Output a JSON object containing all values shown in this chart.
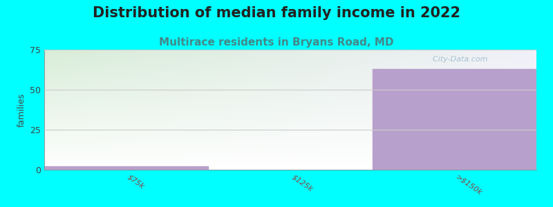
{
  "title": "Distribution of median family income in 2022",
  "subtitle": "Multirace residents in Bryans Road, MD",
  "categories": [
    "$75k",
    "$125k",
    ">$150k"
  ],
  "values": [
    2,
    0,
    63
  ],
  "bar_color": "#B8A0CC",
  "background_color": "#00FFFF",
  "plot_bg_gradient_topleft": "#d8edd8",
  "plot_bg_gradient_topright": "#f0f0f8",
  "plot_bg_gradient_bottom": "#ffffff",
  "ylabel": "families",
  "ylim": [
    0,
    75
  ],
  "yticks": [
    0,
    25,
    50,
    75
  ],
  "title_fontsize": 15,
  "subtitle_fontsize": 11,
  "title_color": "#222222",
  "subtitle_color": "#448888",
  "watermark": "  City-Data.com",
  "watermark_color": "#99BBCC",
  "tick_label_color": "#884444",
  "tick_label_fontsize": 8,
  "ylabel_color": "#444444",
  "ytick_color": "#444444",
  "gridline_color": "#cccccc"
}
